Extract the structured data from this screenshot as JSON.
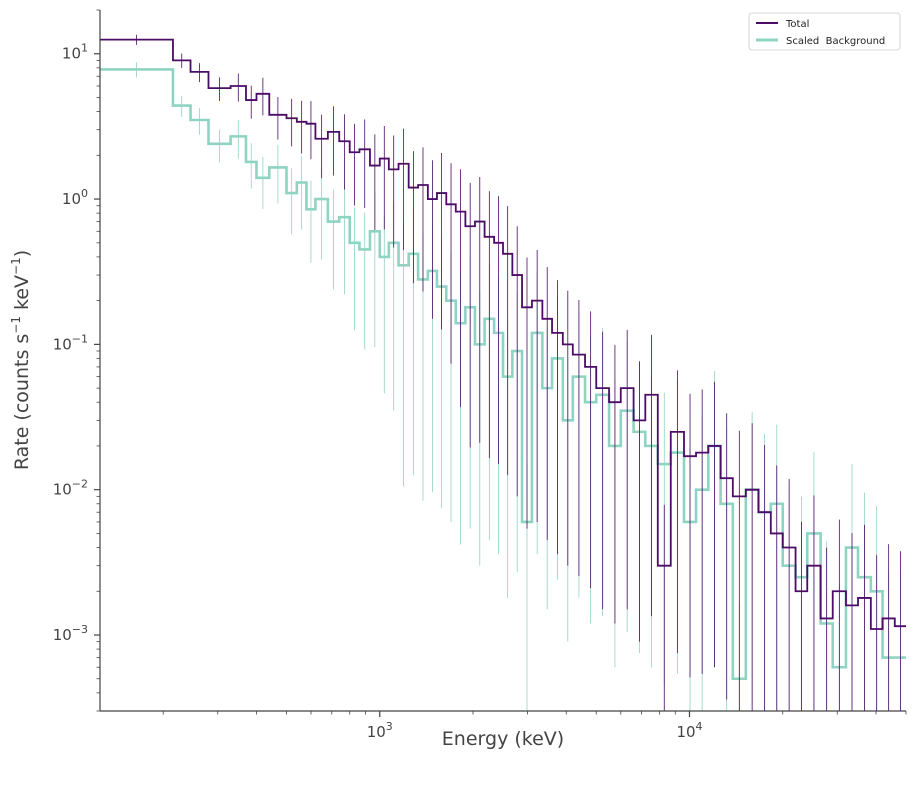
{
  "chart_data": {
    "type": "line",
    "title": "",
    "xlabel": "Energy (keV)",
    "ylabel_parts": [
      "Rate (counts s",
      "−1",
      " keV",
      "−1",
      ")"
    ],
    "xscale": "log",
    "yscale": "log",
    "xlim": [
      125,
      50000
    ],
    "ylim": [
      0.0003,
      20
    ],
    "x_ticks": [
      {
        "value": 1000,
        "base": "10",
        "exp": "3"
      },
      {
        "value": 10000,
        "base": "10",
        "exp": "4"
      }
    ],
    "y_ticks": [
      {
        "value": 10,
        "base": "10",
        "exp": "1"
      },
      {
        "value": 1,
        "base": "10",
        "exp": "0"
      },
      {
        "value": 0.1,
        "base": "10",
        "exp": "−1"
      },
      {
        "value": 0.01,
        "base": "10",
        "exp": "−2"
      },
      {
        "value": 0.001,
        "base": "10",
        "exp": "−3"
      }
    ],
    "grid": false,
    "legend_position": "top-right",
    "series": [
      {
        "name": "Total",
        "color": "#4b0b66",
        "style": "step",
        "bins": [
          [
            125,
            215,
            12.5
          ],
          [
            215,
            245,
            9.0
          ],
          [
            245,
            280,
            7.5
          ],
          [
            280,
            330,
            5.8
          ],
          [
            330,
            370,
            6.0
          ],
          [
            370,
            400,
            4.8
          ],
          [
            400,
            440,
            5.3
          ],
          [
            440,
            500,
            3.8
          ],
          [
            500,
            540,
            3.6
          ],
          [
            540,
            580,
            3.4
          ],
          [
            580,
            620,
            3.3
          ],
          [
            620,
            680,
            2.6
          ],
          [
            680,
            740,
            2.9
          ],
          [
            740,
            800,
            2.5
          ],
          [
            800,
            860,
            2.1
          ],
          [
            860,
            930,
            2.2
          ],
          [
            930,
            1000,
            1.7
          ],
          [
            1000,
            1070,
            1.9
          ],
          [
            1070,
            1150,
            1.6
          ],
          [
            1150,
            1240,
            1.75
          ],
          [
            1240,
            1330,
            1.2
          ],
          [
            1330,
            1430,
            1.25
          ],
          [
            1430,
            1530,
            1.0
          ],
          [
            1530,
            1640,
            1.1
          ],
          [
            1640,
            1760,
            0.92
          ],
          [
            1760,
            1890,
            0.82
          ],
          [
            1890,
            2030,
            0.65
          ],
          [
            2030,
            2180,
            0.7
          ],
          [
            2180,
            2340,
            0.55
          ],
          [
            2340,
            2500,
            0.5
          ],
          [
            2500,
            2680,
            0.42
          ],
          [
            2680,
            2880,
            0.3
          ],
          [
            2880,
            3100,
            0.18
          ],
          [
            3100,
            3350,
            0.2
          ],
          [
            3350,
            3600,
            0.15
          ],
          [
            3600,
            3900,
            0.12
          ],
          [
            3900,
            4200,
            0.1
          ],
          [
            4200,
            4600,
            0.085
          ],
          [
            4600,
            5000,
            0.07
          ],
          [
            5000,
            5500,
            0.05
          ],
          [
            5500,
            6000,
            0.04
          ],
          [
            6000,
            6600,
            0.05
          ],
          [
            6600,
            7200,
            0.03
          ],
          [
            7200,
            7900,
            0.045
          ],
          [
            7900,
            8700,
            0.003
          ],
          [
            8700,
            9600,
            0.025
          ],
          [
            9600,
            10500,
            0.017
          ],
          [
            10500,
            11500,
            0.018
          ],
          [
            11500,
            12600,
            0.02
          ],
          [
            12600,
            13800,
            0.012
          ],
          [
            13800,
            15200,
            0.009
          ],
          [
            15200,
            16700,
            0.01
          ],
          [
            16700,
            18300,
            0.007
          ],
          [
            18300,
            20000,
            0.005
          ],
          [
            20000,
            22000,
            0.004
          ],
          [
            22000,
            24000,
            0.002
          ],
          [
            24000,
            26500,
            0.003
          ],
          [
            26500,
            29000,
            0.0013
          ],
          [
            29000,
            32000,
            0.002
          ],
          [
            32000,
            35000,
            0.0016
          ],
          [
            35000,
            38500,
            0.0018
          ],
          [
            38500,
            42000,
            0.0011
          ],
          [
            42000,
            46000,
            0.0013
          ],
          [
            46000,
            50000,
            0.00115
          ]
        ]
      },
      {
        "name": "Scaled  Background",
        "color": "#8fd3c3",
        "style": "step",
        "bins": [
          [
            125,
            215,
            7.8
          ],
          [
            215,
            245,
            4.4
          ],
          [
            245,
            280,
            3.5
          ],
          [
            280,
            330,
            2.4
          ],
          [
            330,
            370,
            2.7
          ],
          [
            370,
            400,
            1.8
          ],
          [
            400,
            440,
            1.4
          ],
          [
            440,
            500,
            1.65
          ],
          [
            500,
            540,
            1.1
          ],
          [
            540,
            580,
            1.3
          ],
          [
            580,
            620,
            0.85
          ],
          [
            620,
            680,
            1.0
          ],
          [
            680,
            740,
            0.7
          ],
          [
            740,
            800,
            0.75
          ],
          [
            800,
            860,
            0.5
          ],
          [
            860,
            930,
            0.45
          ],
          [
            930,
            1000,
            0.6
          ],
          [
            1000,
            1070,
            0.4
          ],
          [
            1070,
            1150,
            0.5
          ],
          [
            1150,
            1240,
            0.35
          ],
          [
            1240,
            1330,
            0.42
          ],
          [
            1330,
            1430,
            0.28
          ],
          [
            1430,
            1530,
            0.32
          ],
          [
            1530,
            1640,
            0.25
          ],
          [
            1640,
            1760,
            0.2
          ],
          [
            1760,
            1890,
            0.14
          ],
          [
            1890,
            2030,
            0.18
          ],
          [
            2030,
            2180,
            0.1
          ],
          [
            2180,
            2340,
            0.15
          ],
          [
            2340,
            2500,
            0.12
          ],
          [
            2500,
            2680,
            0.06
          ],
          [
            2680,
            2880,
            0.09
          ],
          [
            2880,
            3100,
            0.006
          ],
          [
            3100,
            3350,
            0.12
          ],
          [
            3350,
            3600,
            0.05
          ],
          [
            3600,
            3900,
            0.08
          ],
          [
            3900,
            4200,
            0.03
          ],
          [
            4200,
            4600,
            0.06
          ],
          [
            4600,
            5000,
            0.04
          ],
          [
            5000,
            5500,
            0.045
          ],
          [
            5500,
            6000,
            0.02
          ],
          [
            6000,
            6600,
            0.035
          ],
          [
            6600,
            7200,
            0.025
          ],
          [
            7200,
            7900,
            0.02
          ],
          [
            7900,
            8700,
            0.015
          ],
          [
            8700,
            9600,
            0.018
          ],
          [
            9600,
            10500,
            0.006
          ],
          [
            10500,
            11500,
            0.01
          ],
          [
            11500,
            12600,
            0.02
          ],
          [
            12600,
            13800,
            0.008
          ],
          [
            13800,
            15200,
            0.0005
          ],
          [
            15200,
            16700,
            0.01
          ],
          [
            16700,
            18300,
            0.007
          ],
          [
            18300,
            20000,
            0.008
          ],
          [
            20000,
            22000,
            0.003
          ],
          [
            22000,
            24000,
            0.0025
          ],
          [
            24000,
            26500,
            0.005
          ],
          [
            26500,
            29000,
            0.0012
          ],
          [
            29000,
            32000,
            0.0006
          ],
          [
            32000,
            35000,
            0.004
          ],
          [
            35000,
            38500,
            0.0025
          ],
          [
            38500,
            42000,
            0.002
          ],
          [
            42000,
            46000,
            0.0007
          ],
          [
            46000,
            50000,
            0.0007
          ]
        ]
      }
    ]
  }
}
